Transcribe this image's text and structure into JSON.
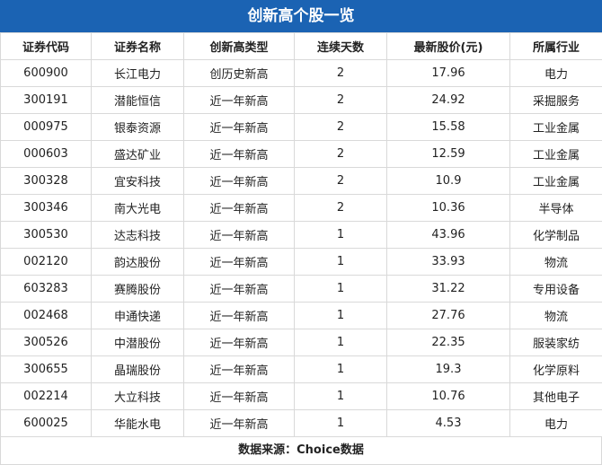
{
  "title": "创新高个股一览",
  "columns": [
    "证券代码",
    "证券名称",
    "创新高类型",
    "连续天数",
    "最新股价(元)",
    "所属行业"
  ],
  "rows": [
    [
      "600900",
      "长江电力",
      "创历史新高",
      "2",
      "17.96",
      "电力"
    ],
    [
      "300191",
      "潜能恒信",
      "近一年新高",
      "2",
      "24.92",
      "采掘服务"
    ],
    [
      "000975",
      "银泰资源",
      "近一年新高",
      "2",
      "15.58",
      "工业金属"
    ],
    [
      "000603",
      "盛达矿业",
      "近一年新高",
      "2",
      "12.59",
      "工业金属"
    ],
    [
      "300328",
      "宜安科技",
      "近一年新高",
      "2",
      "10.9",
      "工业金属"
    ],
    [
      "300346",
      "南大光电",
      "近一年新高",
      "2",
      "10.36",
      "半导体"
    ],
    [
      "300530",
      "达志科技",
      "近一年新高",
      "1",
      "43.96",
      "化学制品"
    ],
    [
      "002120",
      "韵达股份",
      "近一年新高",
      "1",
      "33.93",
      "物流"
    ],
    [
      "603283",
      "赛腾股份",
      "近一年新高",
      "1",
      "31.22",
      "专用设备"
    ],
    [
      "002468",
      "申通快递",
      "近一年新高",
      "1",
      "27.76",
      "物流"
    ],
    [
      "300526",
      "中潜股份",
      "近一年新高",
      "1",
      "22.35",
      "服装家纺"
    ],
    [
      "300655",
      "晶瑞股份",
      "近一年新高",
      "1",
      "19.3",
      "化学原料"
    ],
    [
      "002214",
      "大立科技",
      "近一年新高",
      "1",
      "10.76",
      "其他电子"
    ],
    [
      "600025",
      "华能水电",
      "近一年新高",
      "1",
      "4.53",
      "电力"
    ]
  ],
  "footer": "数据来源：Choice数据",
  "colors": {
    "title_bg": "#1b63b3",
    "border": "#d9d9d9"
  }
}
